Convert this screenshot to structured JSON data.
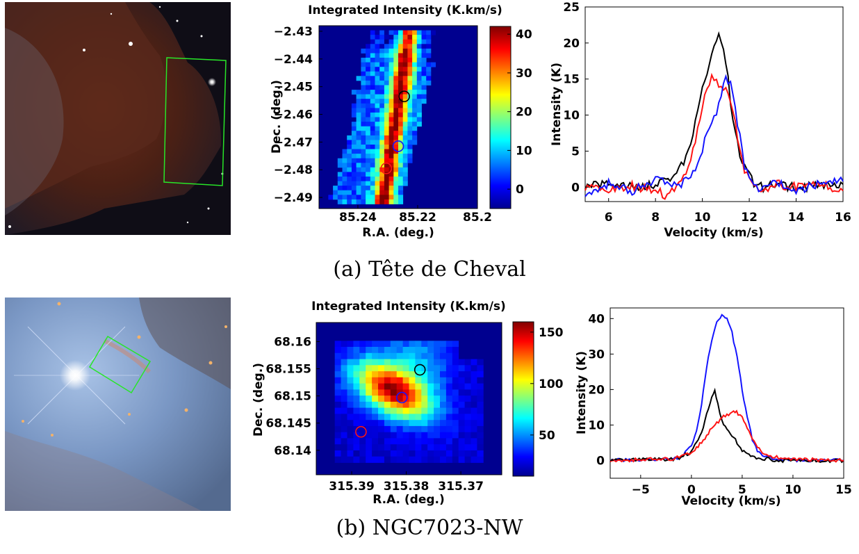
{
  "captions": {
    "a": "(a) Tête de Cheval",
    "b": "(b) NGC7023-NW"
  },
  "colors": {
    "black": "#000000",
    "blue": "#1414ff",
    "red": "#ff1414",
    "box": "#28e628"
  },
  "chart_data": [
    {
      "id": "a-map",
      "type": "heatmap",
      "title": "Integrated Intensity (K.km/s)",
      "xlabel": "R.A. (deg.)",
      "ylabel": "Dec. (deg.)",
      "xlim": [
        85.253,
        85.2
      ],
      "ylim": [
        -2.494,
        -2.428
      ],
      "xticks": [
        "85.24",
        "85.22",
        "85.2"
      ],
      "xtick_values": [
        85.24,
        85.22,
        85.2
      ],
      "yticks": [
        "-2.43",
        "-2.44",
        "-2.45",
        "-2.46",
        "-2.47",
        "-2.48",
        "-2.49"
      ],
      "ytick_values": [
        -2.43,
        -2.44,
        -2.45,
        -2.46,
        -2.47,
        -2.48,
        -2.49
      ],
      "colorbar": {
        "min": -5,
        "max": 42,
        "ticks": [
          "40",
          "30",
          "20",
          "10",
          "0"
        ],
        "tick_values": [
          40,
          30,
          20,
          10,
          0
        ]
      },
      "markers": [
        {
          "color": "black",
          "ra": 85.2245,
          "dec": -2.4535
        },
        {
          "color": "blue",
          "ra": 85.2265,
          "dec": -2.4715
        },
        {
          "color": "red",
          "ra": 85.2305,
          "dec": -2.4795
        }
      ]
    },
    {
      "id": "a-spectra",
      "type": "line",
      "xlabel": "Velocity (km/s)",
      "ylabel": "Intensity (K)",
      "xlim": [
        5,
        16
      ],
      "ylim": [
        -2,
        25
      ],
      "xticks": [
        "6",
        "8",
        "10",
        "12",
        "14",
        "16"
      ],
      "xtick_values": [
        6,
        8,
        10,
        12,
        14,
        16
      ],
      "yticks": [
        "0",
        "5",
        "10",
        "15",
        "20",
        "25"
      ],
      "ytick_values": [
        0,
        5,
        10,
        15,
        20,
        25
      ],
      "series": [
        {
          "color": "black",
          "x": [
            5,
            6,
            7,
            8,
            8.8,
            9.3,
            9.6,
            9.9,
            10.2,
            10.5,
            10.7,
            10.9,
            11.1,
            11.3,
            11.6,
            11.9,
            12.2,
            12.6,
            13,
            14,
            15,
            16
          ],
          "y": [
            0,
            0.5,
            0,
            0.3,
            1.5,
            4,
            7.5,
            12,
            16,
            19.5,
            21.2,
            19,
            15,
            9,
            4.5,
            2.2,
            0.5,
            0,
            0.3,
            0,
            0.2,
            0.4
          ]
        },
        {
          "color": "red",
          "x": [
            5,
            6,
            7,
            8,
            8.5,
            9,
            9.4,
            9.8,
            10.1,
            10.4,
            10.6,
            10.8,
            11,
            11.2,
            11.5,
            11.8,
            12.2,
            12.6,
            13,
            14,
            15,
            16
          ],
          "y": [
            0,
            -0.3,
            0.2,
            -0.5,
            -1.2,
            0.5,
            3,
            8,
            13,
            15.2,
            14.8,
            13.5,
            14,
            12,
            7,
            2.5,
            0.3,
            -0.8,
            0.5,
            0,
            0.5,
            -0.5
          ]
        },
        {
          "color": "blue",
          "x": [
            5,
            6,
            7,
            8,
            8.5,
            9,
            9.5,
            9.9,
            10.2,
            10.5,
            10.8,
            11,
            11.2,
            11.5,
            11.8,
            12.1,
            12.5,
            13,
            14,
            15,
            16
          ],
          "y": [
            -1,
            0.5,
            -0.5,
            1,
            0.5,
            0,
            1.5,
            4,
            7.5,
            9.5,
            12.5,
            15.3,
            14.5,
            9,
            3,
            0.5,
            -0.5,
            0.8,
            -0.5,
            0.5,
            0.8
          ]
        }
      ]
    },
    {
      "id": "b-map",
      "type": "heatmap",
      "title": "Integrated Intensity (K.km/s)",
      "xlabel": "R.A. (deg.)",
      "ylabel": "Dec. (deg.)",
      "xlim": [
        315.3965,
        315.3625
      ],
      "ylim": [
        68.1355,
        68.1635
      ],
      "xticks": [
        "315.39",
        "315.38",
        "315.37"
      ],
      "xtick_values": [
        315.39,
        315.38,
        315.37
      ],
      "yticks": [
        "68.16",
        "68.155",
        "68.15",
        "68.145",
        "68.14"
      ],
      "ytick_values": [
        68.16,
        68.155,
        68.15,
        68.145,
        68.14
      ],
      "colorbar": {
        "min": 10,
        "max": 160,
        "ticks": [
          "150",
          "100",
          "50"
        ],
        "tick_values": [
          150,
          100,
          50
        ]
      },
      "markers": [
        {
          "color": "black",
          "ra": 315.3775,
          "dec": 68.1548
        },
        {
          "color": "blue",
          "ra": 315.3808,
          "dec": 68.1497
        },
        {
          "color": "red",
          "ra": 315.3883,
          "dec": 68.1434
        }
      ]
    },
    {
      "id": "b-spectra",
      "type": "line",
      "xlabel": "Velocity (km/s)",
      "ylabel": "Intensity (K)",
      "xlim": [
        -8,
        15
      ],
      "ylim": [
        -5,
        43
      ],
      "xticks": [
        "-5",
        "0",
        "5",
        "10",
        "15"
      ],
      "xtick_values": [
        -5,
        0,
        5,
        10,
        15
      ],
      "yticks": [
        "0",
        "10",
        "20",
        "30",
        "40"
      ],
      "ytick_values": [
        0,
        10,
        20,
        30,
        40
      ],
      "series": [
        {
          "color": "blue",
          "x": [
            -8,
            -4,
            -2,
            -1,
            0,
            0.5,
            1,
            1.5,
            2,
            2.5,
            3,
            3.5,
            4,
            4.5,
            5,
            5.5,
            6,
            6.5,
            7,
            8,
            10,
            15
          ],
          "y": [
            0,
            0.2,
            0.5,
            1,
            4,
            8,
            16,
            26,
            34,
            39,
            41,
            40,
            36,
            29,
            20,
            12,
            6,
            3,
            1.5,
            0.5,
            0,
            0
          ]
        },
        {
          "color": "black",
          "x": [
            -8,
            -4,
            -2,
            -1,
            0,
            0.5,
            1,
            1.5,
            2,
            2.3,
            2.6,
            3,
            3.5,
            4,
            4.5,
            5,
            5.5,
            6,
            7,
            9,
            15
          ],
          "y": [
            0,
            0.5,
            0.3,
            1,
            2.5,
            5,
            8,
            13,
            18,
            19.5,
            16,
            11,
            9,
            7,
            5,
            3,
            2,
            1,
            0.5,
            0,
            0
          ]
        },
        {
          "color": "red",
          "x": [
            -8,
            -4,
            -2,
            -1,
            0,
            0.5,
            1,
            1.5,
            2,
            2.5,
            3,
            3.5,
            4,
            4.3,
            4.6,
            5,
            5.5,
            6,
            6.5,
            7,
            8,
            10,
            15
          ],
          "y": [
            0,
            0.3,
            0.5,
            1,
            2,
            3.5,
            5,
            7,
            9,
            10.5,
            12,
            13,
            13.5,
            14,
            13.2,
            12,
            9,
            6,
            4,
            2,
            1,
            0.3,
            0
          ]
        }
      ]
    }
  ]
}
